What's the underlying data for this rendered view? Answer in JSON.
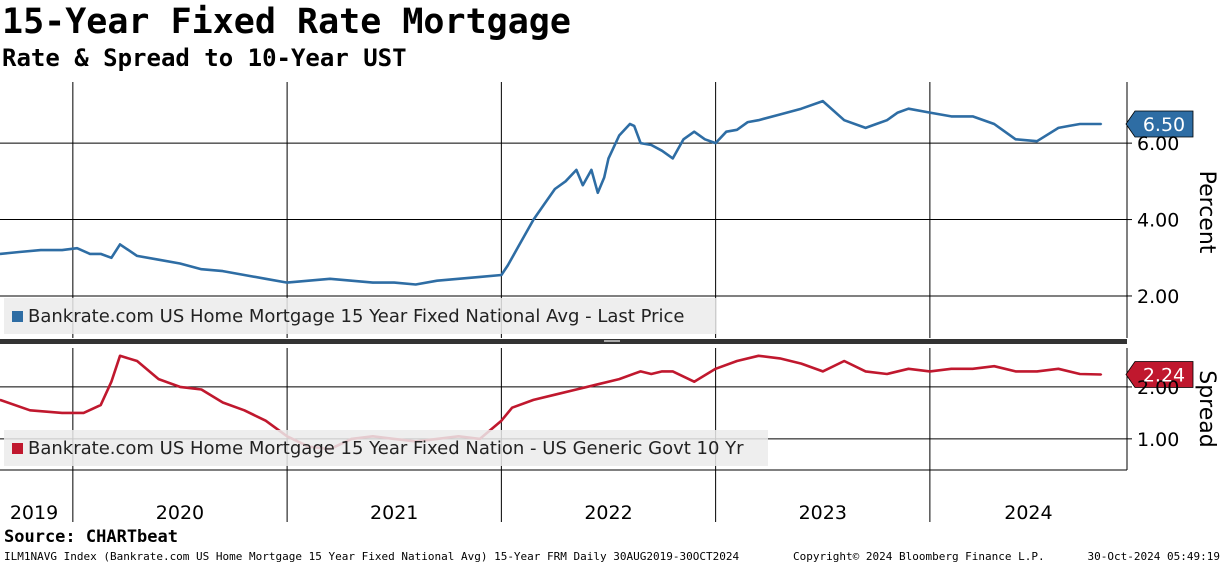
{
  "header": {
    "title": "15-Year Fixed Rate Mortgage",
    "subtitle": "Rate & Spread to 10-Year UST"
  },
  "footer": {
    "source": "Source: CHARTbeat",
    "description": "ILM1NAVG Index (Bankrate.com US Home Mortgage 15 Year Fixed National Avg) 15-Year FRM  Daily 30AUG2019-30OCT2024",
    "copyright": "Copyright© 2024 Bloomberg Finance L.P.",
    "timestamp": "30-Oct-2024 05:49:19"
  },
  "colors": {
    "rate": "#2e6da4",
    "spread": "#c0182e"
  },
  "chart_data": [
    {
      "type": "line",
      "name": "rate-panel",
      "ylabel": "Percent",
      "ylim": [
        0.9,
        7.6
      ],
      "yticks": [
        2.0,
        4.0,
        6.0
      ],
      "ytick_labels": [
        "2.00",
        "4.00",
        "6.00"
      ],
      "last_value_label": "6.50",
      "last_value": 6.5,
      "legend": "Bankrate.com US Home Mortgage 15 Year Fixed National Avg - Last Price",
      "series": [
        {
          "name": "Bankrate.com US Home Mortgage 15 Year Fixed National Avg - Last Price",
          "x": [
            2019.66,
            2019.75,
            2019.85,
            2019.95,
            2020.02,
            2020.08,
            2020.13,
            2020.18,
            2020.22,
            2020.3,
            2020.4,
            2020.5,
            2020.6,
            2020.7,
            2020.8,
            2020.9,
            2021.0,
            2021.1,
            2021.2,
            2021.3,
            2021.4,
            2021.5,
            2021.6,
            2021.7,
            2021.8,
            2021.9,
            2022.0,
            2022.03,
            2022.08,
            2022.15,
            2022.2,
            2022.25,
            2022.3,
            2022.35,
            2022.38,
            2022.42,
            2022.45,
            2022.48,
            2022.5,
            2022.55,
            2022.6,
            2022.62,
            2022.65,
            2022.7,
            2022.75,
            2022.8,
            2022.85,
            2022.9,
            2022.95,
            2023.0,
            2023.05,
            2023.1,
            2023.15,
            2023.2,
            2023.3,
            2023.4,
            2023.5,
            2023.6,
            2023.7,
            2023.75,
            2023.8,
            2023.85,
            2023.9,
            2024.0,
            2024.1,
            2024.2,
            2024.3,
            2024.4,
            2024.5,
            2024.6,
            2024.65,
            2024.7,
            2024.75,
            2024.8
          ],
          "values": [
            3.1,
            3.15,
            3.2,
            3.2,
            3.25,
            3.1,
            3.1,
            3.0,
            3.35,
            3.05,
            2.95,
            2.85,
            2.7,
            2.65,
            2.55,
            2.45,
            2.35,
            2.4,
            2.45,
            2.4,
            2.35,
            2.35,
            2.3,
            2.4,
            2.45,
            2.5,
            2.55,
            2.8,
            3.3,
            4.0,
            4.4,
            4.8,
            5.0,
            5.3,
            4.9,
            5.3,
            4.7,
            5.1,
            5.6,
            6.2,
            6.5,
            6.45,
            6.0,
            5.95,
            5.8,
            5.6,
            6.1,
            6.3,
            6.1,
            6.0,
            6.3,
            6.35,
            6.55,
            6.6,
            6.75,
            6.9,
            7.1,
            6.6,
            6.4,
            6.5,
            6.6,
            6.8,
            6.9,
            6.8,
            6.7,
            6.7,
            6.5,
            6.1,
            6.05,
            6.4,
            6.45,
            6.5,
            6.5,
            6.5
          ]
        }
      ]
    },
    {
      "type": "line",
      "name": "spread-panel",
      "ylabel": "Spread",
      "ylim": [
        0.4,
        2.75
      ],
      "yticks": [
        1.0,
        2.0
      ],
      "ytick_labels": [
        "1.00",
        "2.00"
      ],
      "last_value_label": "2.24",
      "last_value": 2.24,
      "legend": "Bankrate.com US Home Mortgage 15 Year Fixed Nation - US Generic Govt 10 Yr",
      "series": [
        {
          "name": "Bankrate.com US Home Mortgage 15 Year Fixed Nation - US Generic Govt 10 Yr",
          "x": [
            2019.66,
            2019.8,
            2019.95,
            2020.05,
            2020.13,
            2020.18,
            2020.22,
            2020.3,
            2020.4,
            2020.5,
            2020.6,
            2020.7,
            2020.8,
            2020.9,
            2021.0,
            2021.1,
            2021.2,
            2021.3,
            2021.4,
            2021.5,
            2021.6,
            2021.7,
            2021.8,
            2021.9,
            2022.0,
            2022.05,
            2022.15,
            2022.25,
            2022.35,
            2022.45,
            2022.55,
            2022.65,
            2022.7,
            2022.75,
            2022.8,
            2022.9,
            2023.0,
            2023.1,
            2023.2,
            2023.3,
            2023.4,
            2023.5,
            2023.6,
            2023.7,
            2023.8,
            2023.9,
            2024.0,
            2024.1,
            2024.2,
            2024.3,
            2024.4,
            2024.5,
            2024.6,
            2024.7,
            2024.8
          ],
          "values": [
            1.75,
            1.55,
            1.5,
            1.5,
            1.65,
            2.1,
            2.6,
            2.5,
            2.15,
            2.0,
            1.95,
            1.7,
            1.55,
            1.35,
            1.05,
            0.85,
            0.8,
            1.0,
            1.05,
            1.0,
            0.95,
            1.0,
            1.05,
            1.0,
            1.35,
            1.6,
            1.75,
            1.85,
            1.95,
            2.05,
            2.15,
            2.3,
            2.25,
            2.3,
            2.3,
            2.1,
            2.35,
            2.5,
            2.6,
            2.55,
            2.45,
            2.3,
            2.5,
            2.3,
            2.25,
            2.35,
            2.3,
            2.35,
            2.35,
            2.4,
            2.3,
            2.3,
            2.35,
            2.25,
            2.24
          ]
        }
      ]
    }
  ],
  "x_axis": {
    "range": [
      2019.66,
      2024.92
    ],
    "year_labels": [
      "2019",
      "2020",
      "2021",
      "2022",
      "2023",
      "2024"
    ]
  }
}
